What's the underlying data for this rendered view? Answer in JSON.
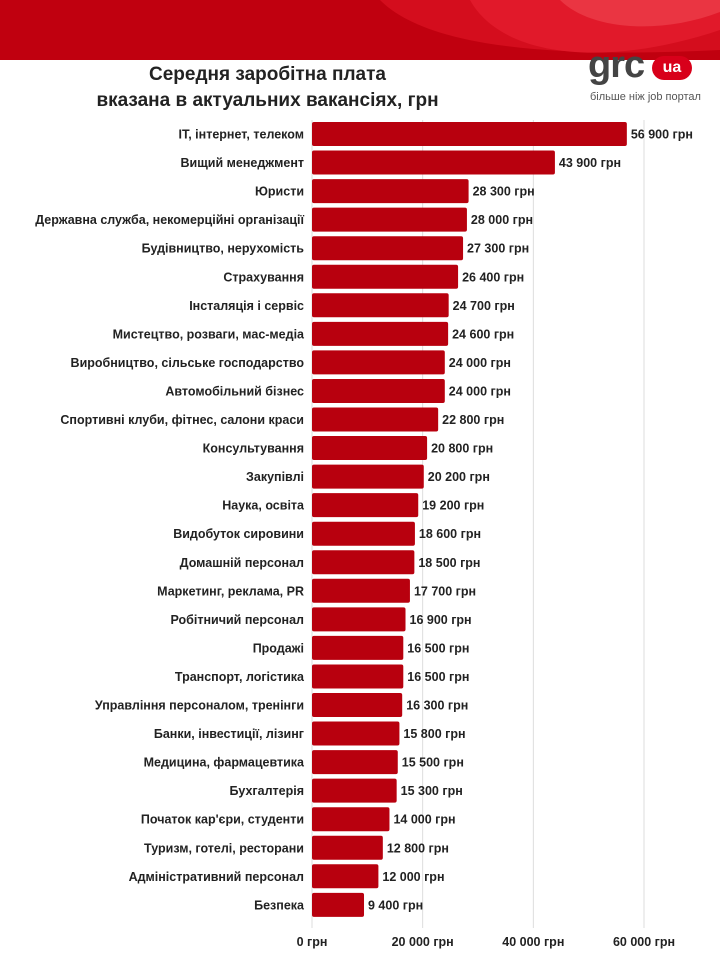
{
  "header": {
    "title_line1": "Середня заробітна плата",
    "title_line2": "вказана в актуальних вакансіях, грн"
  },
  "logo": {
    "brand": "grc",
    "badge": "ua",
    "tagline": "більше ніж job портал"
  },
  "colors": {
    "bar": "#b8000e",
    "header": "#c0000f",
    "header_accent": "#e1192a",
    "grid": "#dddddd",
    "text": "#222222"
  },
  "chart_data": {
    "type": "bar",
    "orientation": "horizontal",
    "title": "Середня заробітна плата вказана в актуальних вакансіях, грн",
    "xlabel": "",
    "ylabel": "",
    "xlim": [
      0,
      60000
    ],
    "ticks": [
      0,
      20000,
      40000,
      60000
    ],
    "tick_labels": [
      "0 грн",
      "20 000 грн",
      "40 000 грн",
      "60 000 грн"
    ],
    "categories": [
      "IT, інтернет, телеком",
      "Вищий менеджмент",
      "Юристи",
      "Державна служба, некомерційні організації",
      "Будівництво, нерухомість",
      "Страхування",
      "Інсталяція і сервіс",
      "Мистецтво, розваги, мас-медіа",
      "Виробництво, сільське господарство",
      "Автомобільний бізнес",
      "Спортивні клуби, фітнес, салони краси",
      "Консультування",
      "Закупівлі",
      "Наука, освіта",
      "Видобуток сировини",
      "Домашній персонал",
      "Маркетинг, реклама, PR",
      "Робітничий персонал",
      "Продажі",
      "Транспорт, логістика",
      "Управління персоналом, тренінги",
      "Банки, інвестиції, лізинг",
      "Медицина, фармацевтика",
      "Бухгалтерія",
      "Початок кар'єри, студенти",
      "Туризм, готелі, ресторани",
      "Адміністративний персонал",
      "Безпека"
    ],
    "values": [
      56900,
      43900,
      28300,
      28000,
      27300,
      26400,
      24700,
      24600,
      24000,
      24000,
      22800,
      20800,
      20200,
      19200,
      18600,
      18500,
      17700,
      16900,
      16500,
      16500,
      16300,
      15800,
      15500,
      15300,
      14000,
      12800,
      12000,
      9400
    ],
    "value_labels": [
      "56 900 грн",
      "43 900 грн",
      "28 300 грн",
      "28 000 грн",
      "27 300 грн",
      "26 400 грн",
      "24 700 грн",
      "24 600 грн",
      "24 000 грн",
      "24 000 грн",
      "22 800 грн",
      "20 800 грн",
      "20 200 грн",
      "19 200 грн",
      "18 600 грн",
      "18 500 грн",
      "17 700 грн",
      "16 900 грн",
      "16 500 грн",
      "16 500 грн",
      "16 300 грн",
      "15 800 грн",
      "15 500 грн",
      "15 300 грн",
      "14 000 грн",
      "12 800 грн",
      "12 000 грн",
      "9 400 грн"
    ]
  }
}
